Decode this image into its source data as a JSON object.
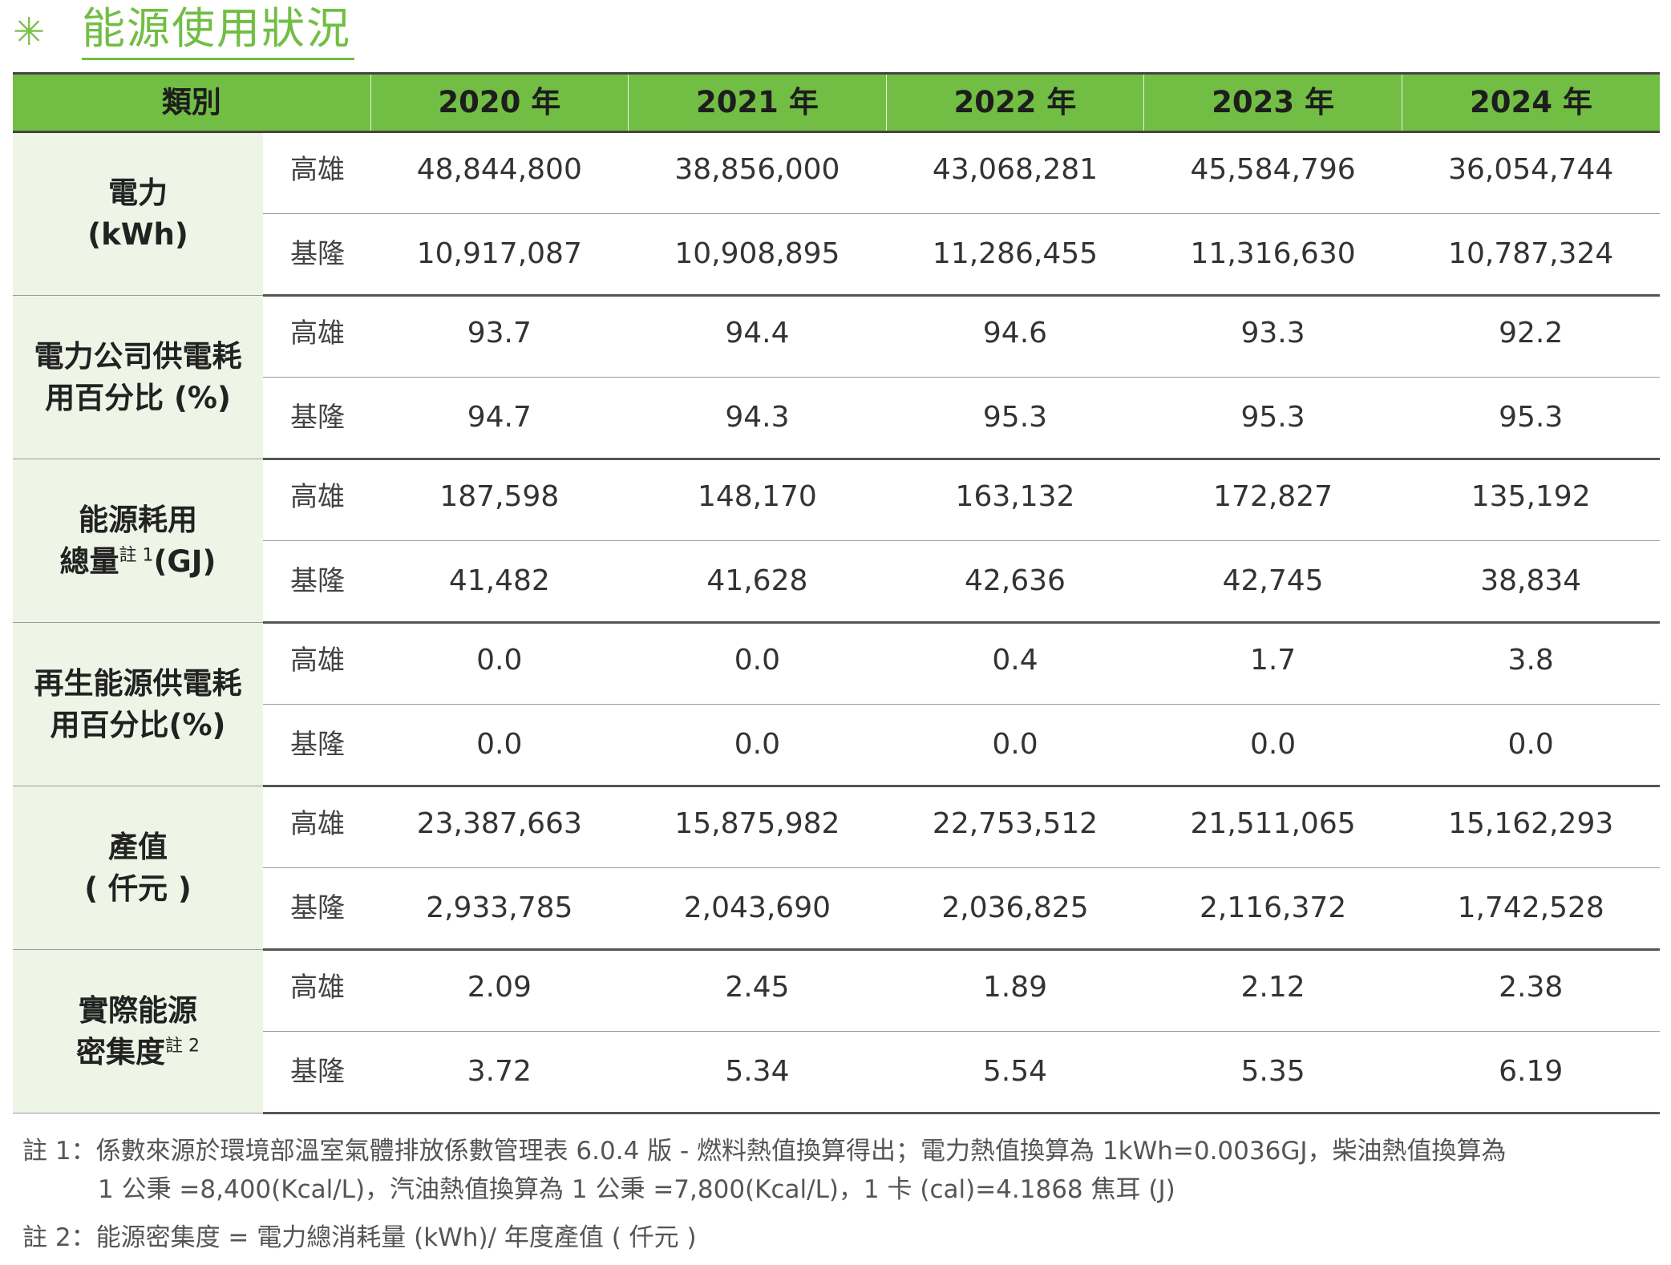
{
  "title": "能源使用狀況",
  "header": {
    "category": "類別",
    "years": [
      "2020 年",
      "2021 年",
      "2022 年",
      "2023 年",
      "2024 年"
    ]
  },
  "groups": [
    {
      "label_lines": [
        "電力",
        "(kWh)"
      ],
      "note": "",
      "rows": [
        {
          "site": "高雄",
          "values": [
            "48,844,800",
            "38,856,000",
            "43,068,281",
            "45,584,796",
            "36,054,744"
          ]
        },
        {
          "site": "基隆",
          "values": [
            "10,917,087",
            "10,908,895",
            "11,286,455",
            "11,316,630",
            "10,787,324"
          ]
        }
      ]
    },
    {
      "label_lines": [
        "電力公司供電耗",
        "用百分比 (%)"
      ],
      "note": "",
      "rows": [
        {
          "site": "高雄",
          "values": [
            "93.7",
            "94.4",
            "94.6",
            "93.3",
            "92.2"
          ]
        },
        {
          "site": "基隆",
          "values": [
            "94.7",
            "94.3",
            "95.3",
            "95.3",
            "95.3"
          ]
        }
      ]
    },
    {
      "label_lines": [
        "能源耗用",
        "總量"
      ],
      "note": "註 1",
      "suffix": "(GJ)",
      "rows": [
        {
          "site": "高雄",
          "values": [
            "187,598",
            "148,170",
            "163,132",
            "172,827",
            "135,192"
          ]
        },
        {
          "site": "基隆",
          "values": [
            "41,482",
            "41,628",
            "42,636",
            "42,745",
            "38,834"
          ]
        }
      ]
    },
    {
      "label_lines": [
        "再生能源供電耗",
        "用百分比(%)"
      ],
      "note": "",
      "rows": [
        {
          "site": "高雄",
          "values": [
            "0.0",
            "0.0",
            "0.4",
            "1.7",
            "3.8"
          ]
        },
        {
          "site": "基隆",
          "values": [
            "0.0",
            "0.0",
            "0.0",
            "0.0",
            "0.0"
          ]
        }
      ]
    },
    {
      "label_lines": [
        "產值",
        "( 仟元 )"
      ],
      "note": "",
      "rows": [
        {
          "site": "高雄",
          "values": [
            "23,387,663",
            "15,875,982",
            "22,753,512",
            "21,511,065",
            "15,162,293"
          ]
        },
        {
          "site": "基隆",
          "values": [
            "2,933,785",
            "2,043,690",
            "2,036,825",
            "2,116,372",
            "1,742,528"
          ]
        }
      ]
    },
    {
      "label_lines": [
        "實際能源",
        "密集度"
      ],
      "note": "註 2",
      "suffix": "",
      "rows": [
        {
          "site": "高雄",
          "values": [
            "2.09",
            "2.45",
            "1.89",
            "2.12",
            "2.38"
          ]
        },
        {
          "site": "基隆",
          "values": [
            "3.72",
            "5.34",
            "5.54",
            "5.35",
            "6.19"
          ]
        }
      ]
    }
  ],
  "notes": {
    "note1_line1": "註 1：係數來源於環境部溫室氣體排放係數管理表 6.0.4 版 - 燃料熱值換算得出；電力熱值換算為 1kWh=0.0036GJ，柴油熱值換算為",
    "note1_line2": "1 公秉 =8,400(Kcal/L)，汽油熱值換算為 1 公秉 =7,800(Kcal/L)，1 卡 (cal)=4.1868 焦耳 (J)",
    "note2": "註 2：能源密集度 = 電力總消耗量 (kWh)/ 年度產值 ( 仟元 )"
  }
}
